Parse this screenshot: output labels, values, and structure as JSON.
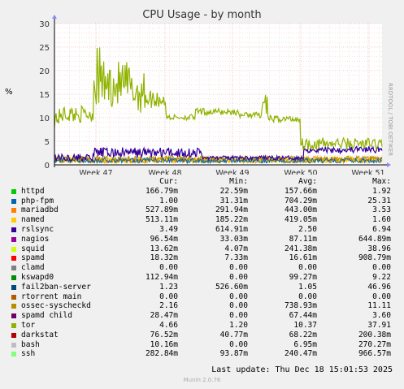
{
  "title": "CPU Usage - by month",
  "side_label": "RRDTOOL / TOBI OETIKER",
  "footer": "Munin 2.0.76",
  "last_update": "Last update: Thu Dec 18 15:01:53 2025",
  "legend_headers": {
    "cur": "Cur:",
    "min": "Min:",
    "avg": "Avg:",
    "max": "Max:"
  },
  "chart_data": {
    "type": "line",
    "title": "CPU Usage - by month",
    "ylabel": "%",
    "ylim": [
      0,
      30
    ],
    "yticks": [
      "0",
      "5",
      "10",
      "15",
      "20",
      "25",
      "30"
    ],
    "xticks": [
      "Week 47",
      "Week 48",
      "Week 49",
      "Week 50",
      "Week 51"
    ],
    "grid": true,
    "series": [
      {
        "name": "httpd",
        "color": "#00cc00",
        "cur": "166.79m",
        "min": "22.59m",
        "avg": "157.66m",
        "max": "1.92"
      },
      {
        "name": "php-fpm",
        "color": "#0066b3",
        "cur": "1.00",
        "min": "31.31m",
        "avg": "704.29m",
        "max": "25.31"
      },
      {
        "name": "mariadbd",
        "color": "#ff8000",
        "cur": "527.89m",
        "min": "291.94m",
        "avg": "443.00m",
        "max": "3.53"
      },
      {
        "name": "named",
        "color": "#ffcc00",
        "cur": "513.11m",
        "min": "185.22m",
        "avg": "419.05m",
        "max": "1.60"
      },
      {
        "name": "rslsync",
        "color": "#330099",
        "cur": "3.49",
        "min": "614.91m",
        "avg": "2.50",
        "max": "6.94"
      },
      {
        "name": "nagios",
        "color": "#990099",
        "cur": "96.54m",
        "min": "33.03m",
        "avg": "87.11m",
        "max": "644.89m"
      },
      {
        "name": "squid",
        "color": "#ccff00",
        "cur": "13.62m",
        "min": "4.07m",
        "avg": "241.38m",
        "max": "38.96"
      },
      {
        "name": "spamd",
        "color": "#ff0000",
        "cur": "18.32m",
        "min": "7.33m",
        "avg": "16.61m",
        "max": "908.79m"
      },
      {
        "name": "clamd",
        "color": "#808080",
        "cur": "0.00",
        "min": "0.00",
        "avg": "0.00",
        "max": "0.00"
      },
      {
        "name": "kswapd0",
        "color": "#008f00",
        "cur": "112.94m",
        "min": "0.00",
        "avg": "99.27m",
        "max": "9.22"
      },
      {
        "name": "fail2ban-server",
        "color": "#00487d",
        "cur": "1.23",
        "min": "526.60m",
        "avg": "1.05",
        "max": "46.96"
      },
      {
        "name": "rtorrent main",
        "color": "#b35a00",
        "cur": "0.00",
        "min": "0.00",
        "avg": "0.00",
        "max": "0.00"
      },
      {
        "name": "ossec-syscheckd",
        "color": "#b38f00",
        "cur": "2.16",
        "min": "0.00",
        "avg": "738.93m",
        "max": "11.11"
      },
      {
        "name": "spamd child",
        "color": "#6b006b",
        "cur": "28.47m",
        "min": "0.00",
        "avg": "67.44m",
        "max": "3.60"
      },
      {
        "name": "tor",
        "color": "#8fb300",
        "cur": "4.66",
        "min": "1.20",
        "avg": "10.37",
        "max": "37.91"
      },
      {
        "name": "darkstat",
        "color": "#b30000",
        "cur": "76.52m",
        "min": "40.77m",
        "avg": "68.22m",
        "max": "200.38m"
      },
      {
        "name": "bash",
        "color": "#bebebe",
        "cur": "10.16m",
        "min": "0.00",
        "avg": "6.95m",
        "max": "270.27m"
      },
      {
        "name": "ssh",
        "color": "#80ff80",
        "cur": "282.84m",
        "min": "93.87m",
        "avg": "240.47m",
        "max": "966.57m"
      }
    ]
  }
}
